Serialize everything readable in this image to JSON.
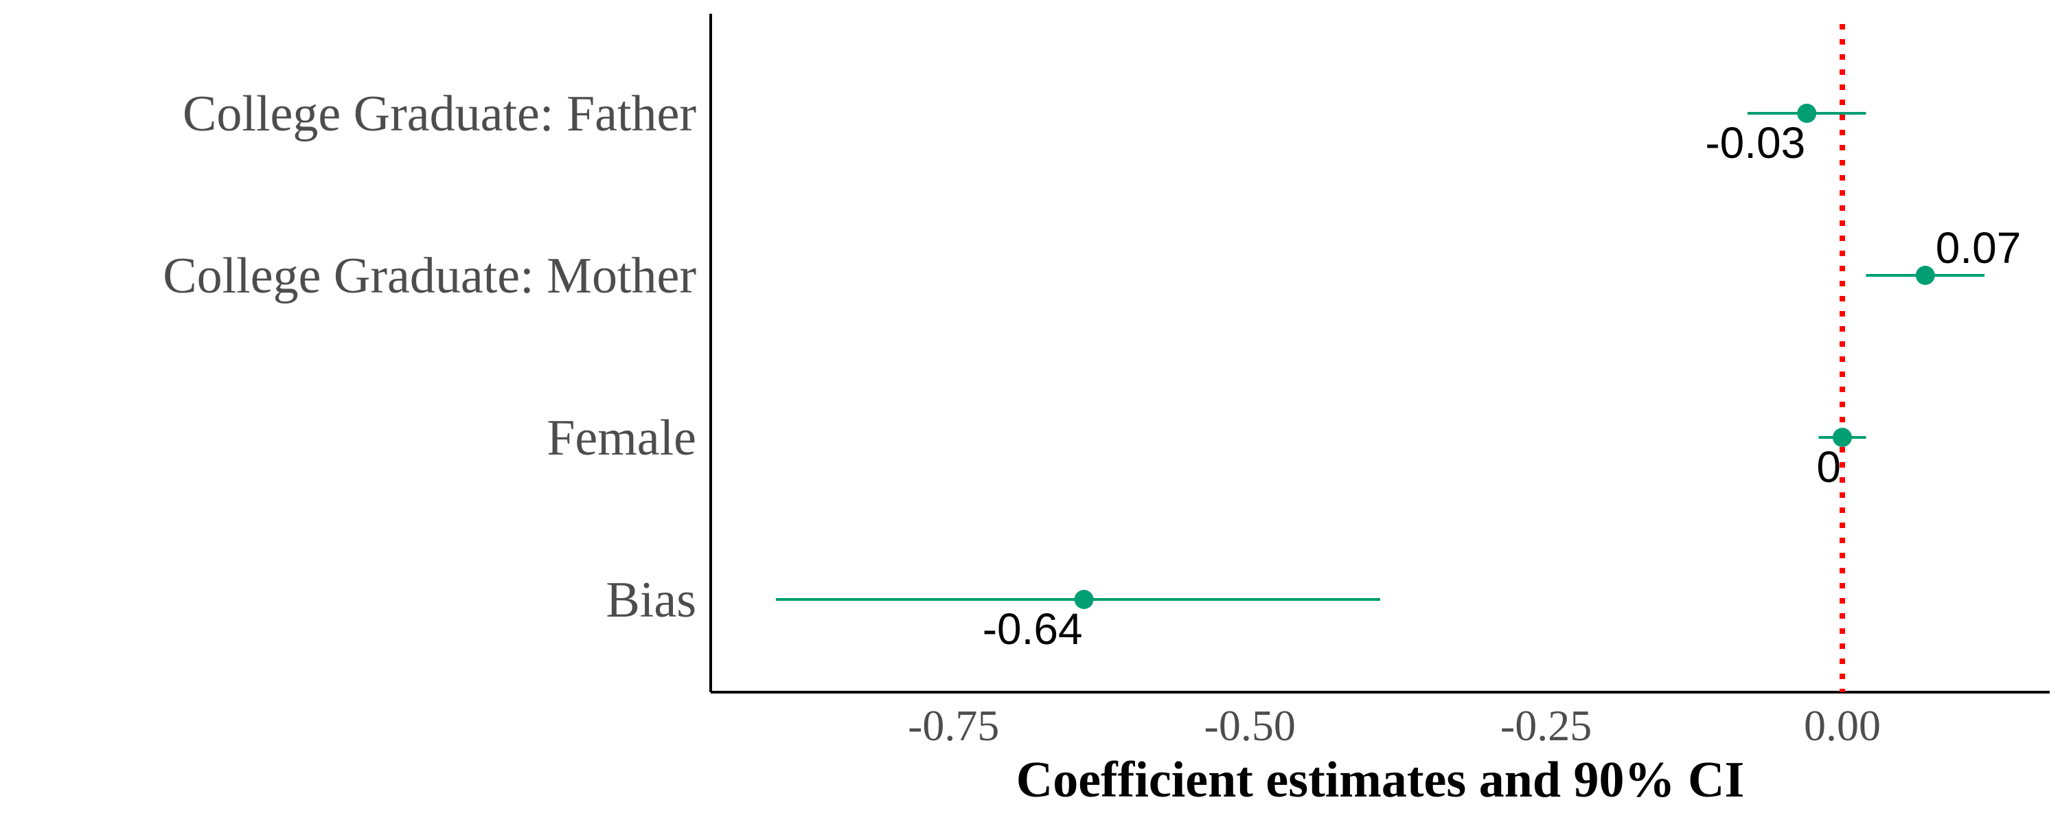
{
  "chart_data": {
    "type": "scatter",
    "subtype": "coefficient-plot",
    "title": "",
    "xlabel": "Coefficient estimates and 90% CI",
    "ylabel": "",
    "xlim": [
      -0.955,
      0.175
    ],
    "xticks": [
      -0.75,
      -0.5,
      -0.25,
      0.0
    ],
    "xtick_labels": [
      "-0.75",
      "-0.50",
      "-0.25",
      "0.00"
    ],
    "grid": false,
    "legend": "none",
    "reference_line": {
      "x": 0,
      "style": "dotted",
      "color": "#ff0000"
    },
    "marker_color": "#009e73",
    "categories": [
      "College Graduate: Father",
      "College Graduate: Mother",
      "Female",
      "Bias"
    ],
    "estimates": [
      -0.03,
      0.07,
      0.0,
      -0.64
    ],
    "ci_low": [
      -0.08,
      0.02,
      -0.02,
      -0.9
    ],
    "ci_high": [
      0.02,
      0.12,
      0.02,
      -0.39
    ],
    "data_labels": [
      "-0.03",
      "0.07",
      "0",
      "-0.64"
    ],
    "label_positions": [
      "below-left",
      "above-right",
      "below-left",
      "below-left"
    ]
  }
}
